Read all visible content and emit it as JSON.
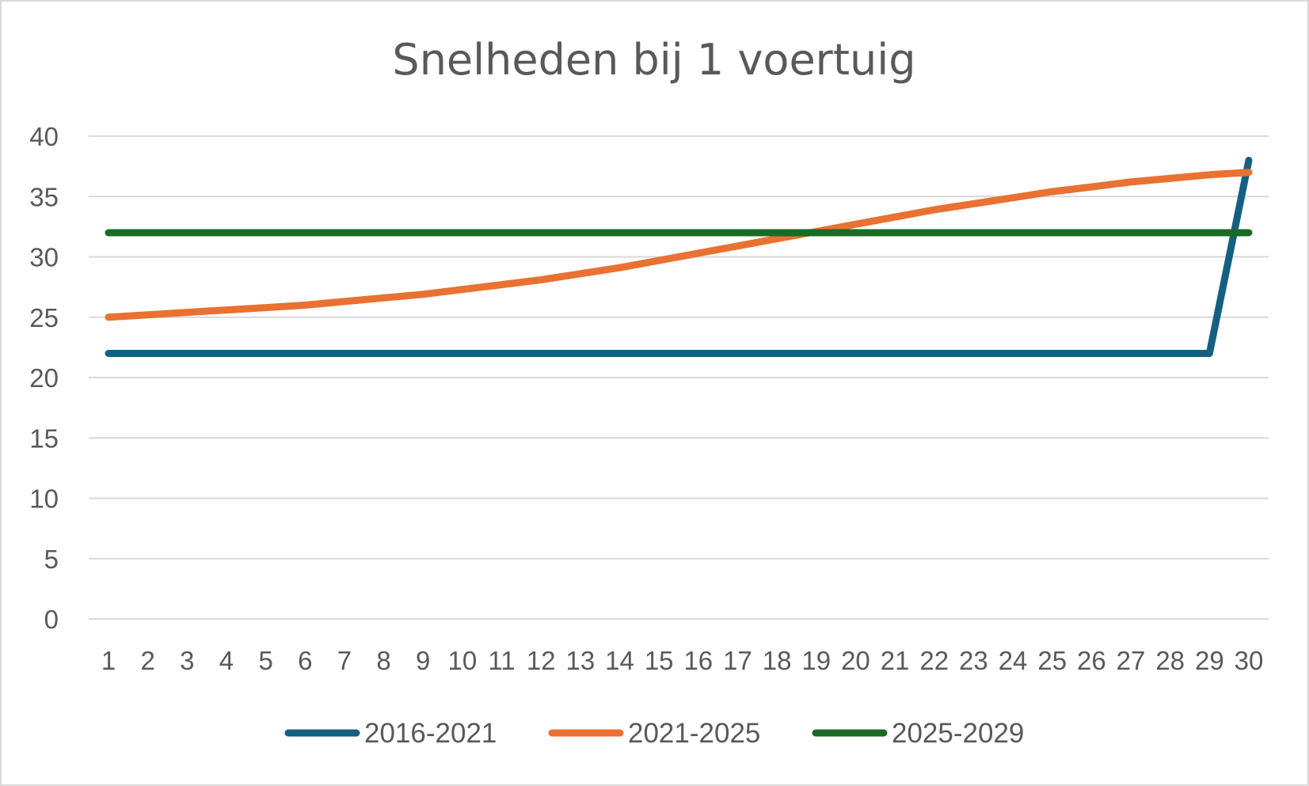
{
  "chart_data": {
    "type": "line",
    "title": "Snelheden bij 1 voertuig",
    "xlabel": "",
    "ylabel": "",
    "categories": [
      "1",
      "2",
      "3",
      "4",
      "5",
      "6",
      "7",
      "8",
      "9",
      "10",
      "11",
      "12",
      "13",
      "14",
      "15",
      "16",
      "17",
      "18",
      "19",
      "20",
      "21",
      "22",
      "23",
      "24",
      "25",
      "26",
      "27",
      "28",
      "29",
      "30"
    ],
    "ylim": [
      0,
      40
    ],
    "yticks": [
      "0",
      "5",
      "10",
      "15",
      "20",
      "25",
      "30",
      "35",
      "40"
    ],
    "grid": true,
    "legend_position": "bottom",
    "series": [
      {
        "name": "2016-2021",
        "color": "#156082",
        "values": [
          22,
          22,
          22,
          22,
          22,
          22,
          22,
          22,
          22,
          22,
          22,
          22,
          22,
          22,
          22,
          22,
          22,
          22,
          22,
          22,
          22,
          22,
          22,
          22,
          22,
          22,
          22,
          22,
          22,
          38
        ]
      },
      {
        "name": "2021-2025",
        "color": "#E97132",
        "values": [
          25,
          25.2,
          25.4,
          25.6,
          25.8,
          26,
          26.3,
          26.6,
          26.9,
          27.3,
          27.7,
          28.1,
          28.6,
          29.1,
          29.7,
          30.3,
          30.9,
          31.5,
          32.1,
          32.7,
          33.3,
          33.9,
          34.4,
          34.9,
          35.4,
          35.8,
          36.2,
          36.5,
          36.8,
          37
        ]
      },
      {
        "name": "2025-2029",
        "color": "#196B24",
        "values": [
          32,
          32,
          32,
          32,
          32,
          32,
          32,
          32,
          32,
          32,
          32,
          32,
          32,
          32,
          32,
          32,
          32,
          32,
          32,
          32,
          32,
          32,
          32,
          32,
          32,
          32,
          32,
          32,
          32,
          32
        ]
      }
    ]
  }
}
